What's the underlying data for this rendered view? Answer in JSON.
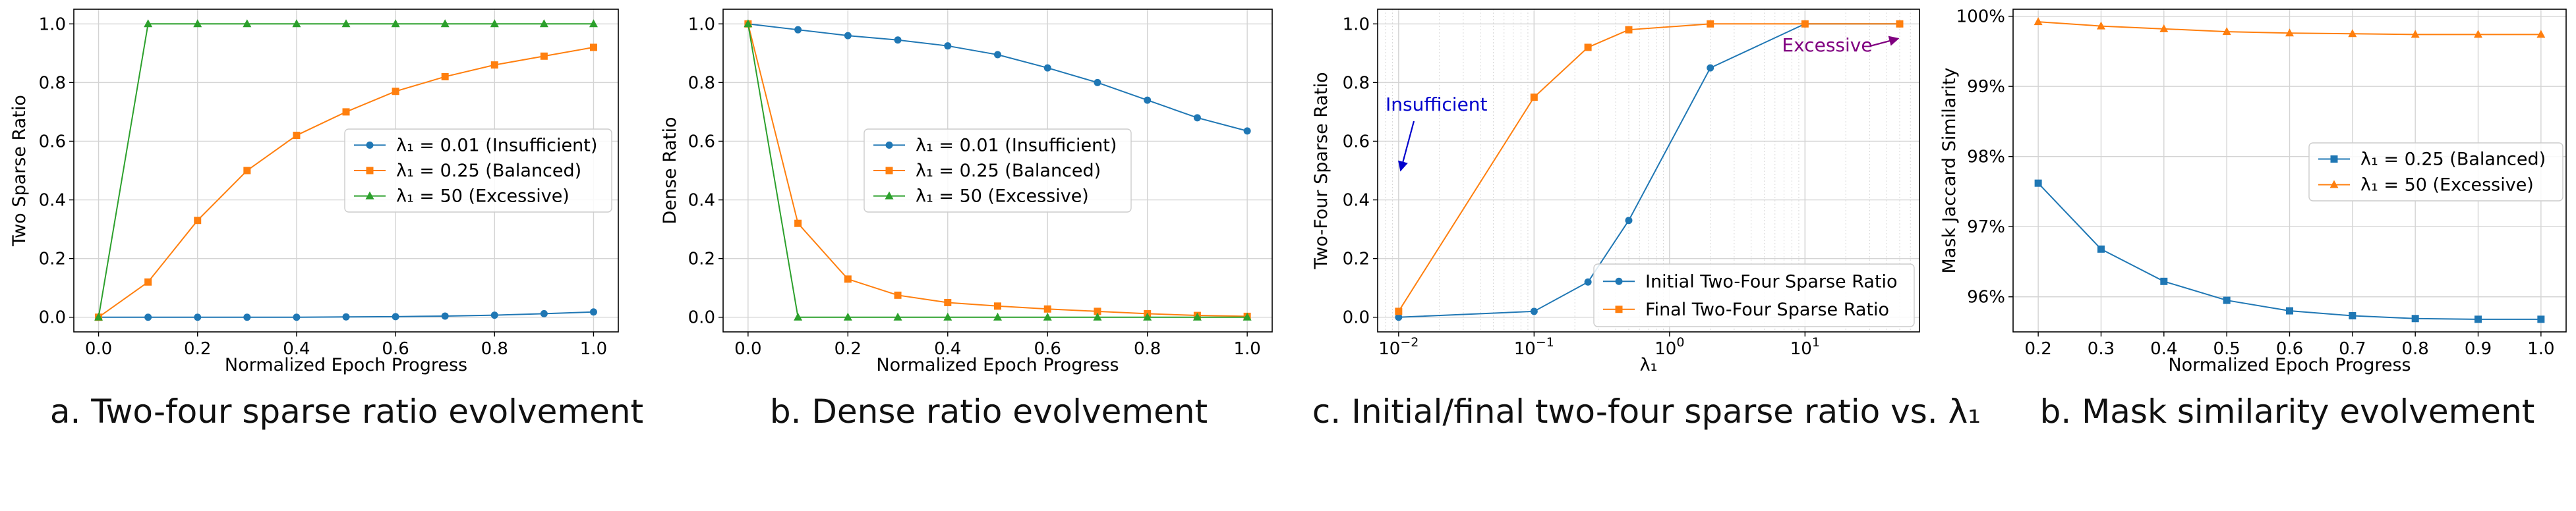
{
  "chart_data": [
    {
      "type": "line",
      "caption": "a. Two-four sparse ratio evolvement",
      "xlabel": "Normalized Epoch Progress",
      "ylabel": "Two Sparse Ratio",
      "xlim": [
        -0.05,
        1.05
      ],
      "ylim": [
        -0.05,
        1.05
      ],
      "x_ticks": [
        0.0,
        0.2,
        0.4,
        0.6,
        0.8,
        1.0
      ],
      "x_tick_labels": [
        "0.0",
        "0.2",
        "0.4",
        "0.6",
        "0.8",
        "1.0"
      ],
      "y_ticks": [
        0.0,
        0.2,
        0.4,
        0.6,
        0.8,
        1.0
      ],
      "y_tick_labels": [
        "0.0",
        "0.2",
        "0.4",
        "0.6",
        "0.8",
        "1.0"
      ],
      "grid": true,
      "legend_position": "center-right",
      "series": [
        {
          "name": "λ₁ = 0.01 (Insufficient)",
          "color": "#1f77b4",
          "marker": "circle",
          "x": [
            0,
            0.1,
            0.2,
            0.3,
            0.4,
            0.5,
            0.6,
            0.7,
            0.8,
            0.9,
            1.0
          ],
          "y": [
            0.0,
            0.0,
            0.0,
            0.0,
            0.0,
            0.001,
            0.002,
            0.004,
            0.007,
            0.012,
            0.018
          ]
        },
        {
          "name": "λ₁ = 0.25 (Balanced)",
          "color": "#ff7f0e",
          "marker": "square",
          "x": [
            0,
            0.1,
            0.2,
            0.3,
            0.4,
            0.5,
            0.6,
            0.7,
            0.8,
            0.9,
            1.0
          ],
          "y": [
            0.0,
            0.12,
            0.33,
            0.5,
            0.62,
            0.7,
            0.77,
            0.82,
            0.86,
            0.89,
            0.92
          ]
        },
        {
          "name": "λ₁ = 50 (Excessive)",
          "color": "#2ca02c",
          "marker": "triangle",
          "x": [
            0,
            0.1,
            0.2,
            0.3,
            0.4,
            0.5,
            0.6,
            0.7,
            0.8,
            0.9,
            1.0
          ],
          "y": [
            0.0,
            1.0,
            1.0,
            1.0,
            1.0,
            1.0,
            1.0,
            1.0,
            1.0,
            1.0,
            1.0
          ]
        }
      ]
    },
    {
      "type": "line",
      "caption": "b. Dense ratio evolvement",
      "xlabel": "Normalized Epoch Progress",
      "ylabel": "Dense Ratio",
      "xlim": [
        -0.05,
        1.05
      ],
      "ylim": [
        -0.05,
        1.05
      ],
      "x_ticks": [
        0.0,
        0.2,
        0.4,
        0.6,
        0.8,
        1.0
      ],
      "x_tick_labels": [
        "0.0",
        "0.2",
        "0.4",
        "0.6",
        "0.8",
        "1.0"
      ],
      "y_ticks": [
        0.0,
        0.2,
        0.4,
        0.6,
        0.8,
        1.0
      ],
      "y_tick_labels": [
        "0.0",
        "0.2",
        "0.4",
        "0.6",
        "0.8",
        "1.0"
      ],
      "grid": true,
      "legend_position": "center-right",
      "series": [
        {
          "name": "λ₁ = 0.01 (Insufficient)",
          "color": "#1f77b4",
          "marker": "circle",
          "x": [
            0,
            0.1,
            0.2,
            0.3,
            0.4,
            0.5,
            0.6,
            0.7,
            0.8,
            0.9,
            1.0
          ],
          "y": [
            1.0,
            0.98,
            0.96,
            0.945,
            0.925,
            0.895,
            0.85,
            0.8,
            0.74,
            0.68,
            0.635
          ]
        },
        {
          "name": "λ₁ = 0.25 (Balanced)",
          "color": "#ff7f0e",
          "marker": "square",
          "x": [
            0,
            0.1,
            0.2,
            0.3,
            0.4,
            0.5,
            0.6,
            0.7,
            0.8,
            0.9,
            1.0
          ],
          "y": [
            1.0,
            0.32,
            0.13,
            0.075,
            0.05,
            0.038,
            0.028,
            0.02,
            0.012,
            0.006,
            0.003
          ]
        },
        {
          "name": "λ₁ = 50 (Excessive)",
          "color": "#2ca02c",
          "marker": "triangle",
          "x": [
            0,
            0.1,
            0.2,
            0.3,
            0.4,
            0.5,
            0.6,
            0.7,
            0.8,
            0.9,
            1.0
          ],
          "y": [
            1.0,
            0.0,
            0.0,
            0.0,
            0.0,
            0.0,
            0.0,
            0.0,
            0.0,
            0.0,
            0.0
          ]
        }
      ]
    },
    {
      "type": "line",
      "caption": "c. Initial/final two-four sparse ratio vs. λ₁",
      "xlabel": "λ₁",
      "ylabel": "Two-Four Sparse Ratio",
      "xscale": "log",
      "xlim": [
        0.007,
        70
      ],
      "ylim": [
        -0.05,
        1.05
      ],
      "x_ticks": [
        0.01,
        0.1,
        1,
        10
      ],
      "x_tick_labels": [
        "10",
        "10",
        "10",
        "10"
      ],
      "x_tick_exponents": [
        "−2",
        "−1",
        "0",
        "1"
      ],
      "y_ticks": [
        0.0,
        0.2,
        0.4,
        0.6,
        0.8,
        1.0
      ],
      "y_tick_labels": [
        "0.0",
        "0.2",
        "0.4",
        "0.6",
        "0.8",
        "1.0"
      ],
      "grid": true,
      "legend_position": "lower-right",
      "annotations": [
        {
          "text": "Insufficient",
          "color": "#0000cc",
          "x": 0.01,
          "y": 0.5
        },
        {
          "text": "Excessive",
          "color": "#800080",
          "x": 50,
          "y": 0.95
        }
      ],
      "series": [
        {
          "name": "Initial Two-Four Sparse Ratio",
          "color": "#1f77b4",
          "marker": "circle",
          "x": [
            0.01,
            0.1,
            0.25,
            0.5,
            2,
            10,
            50
          ],
          "y": [
            0.0,
            0.02,
            0.12,
            0.33,
            0.85,
            1.0,
            1.0
          ]
        },
        {
          "name": "Final Two-Four Sparse Ratio",
          "color": "#ff7f0e",
          "marker": "square",
          "x": [
            0.01,
            0.1,
            0.25,
            0.5,
            2,
            10,
            50
          ],
          "y": [
            0.02,
            0.75,
            0.92,
            0.98,
            1.0,
            1.0,
            1.0
          ]
        }
      ]
    },
    {
      "type": "line",
      "caption": "b. Mask similarity evolvement",
      "xlabel": "Normalized Epoch Progress",
      "ylabel": "Mask Jaccard Similarity",
      "xlim": [
        0.16,
        1.04
      ],
      "ylim": [
        95.5,
        100.1
      ],
      "x_ticks": [
        0.2,
        0.3,
        0.4,
        0.5,
        0.6,
        0.7,
        0.8,
        0.9,
        1.0
      ],
      "x_tick_labels": [
        "0.2",
        "0.3",
        "0.4",
        "0.5",
        "0.6",
        "0.7",
        "0.8",
        "0.9",
        "1.0"
      ],
      "y_ticks": [
        96,
        97,
        98,
        99,
        100
      ],
      "y_tick_labels": [
        "96%",
        "97%",
        "98%",
        "99%",
        "100%"
      ],
      "grid": true,
      "legend_position": "center-right",
      "series": [
        {
          "name": "λ₁ = 0.25 (Balanced)",
          "color": "#1f77b4",
          "marker": "square",
          "x": [
            0.2,
            0.3,
            0.4,
            0.5,
            0.6,
            0.7,
            0.8,
            0.9,
            1.0
          ],
          "y": [
            97.62,
            96.68,
            96.22,
            95.95,
            95.8,
            95.73,
            95.69,
            95.68,
            95.68
          ]
        },
        {
          "name": "λ₁ = 50 (Excessive)",
          "color": "#ff7f0e",
          "marker": "triangle",
          "x": [
            0.2,
            0.3,
            0.4,
            0.5,
            0.6,
            0.7,
            0.8,
            0.9,
            1.0
          ],
          "y": [
            99.92,
            99.86,
            99.82,
            99.78,
            99.76,
            99.75,
            99.74,
            99.74,
            99.74
          ]
        }
      ]
    }
  ]
}
